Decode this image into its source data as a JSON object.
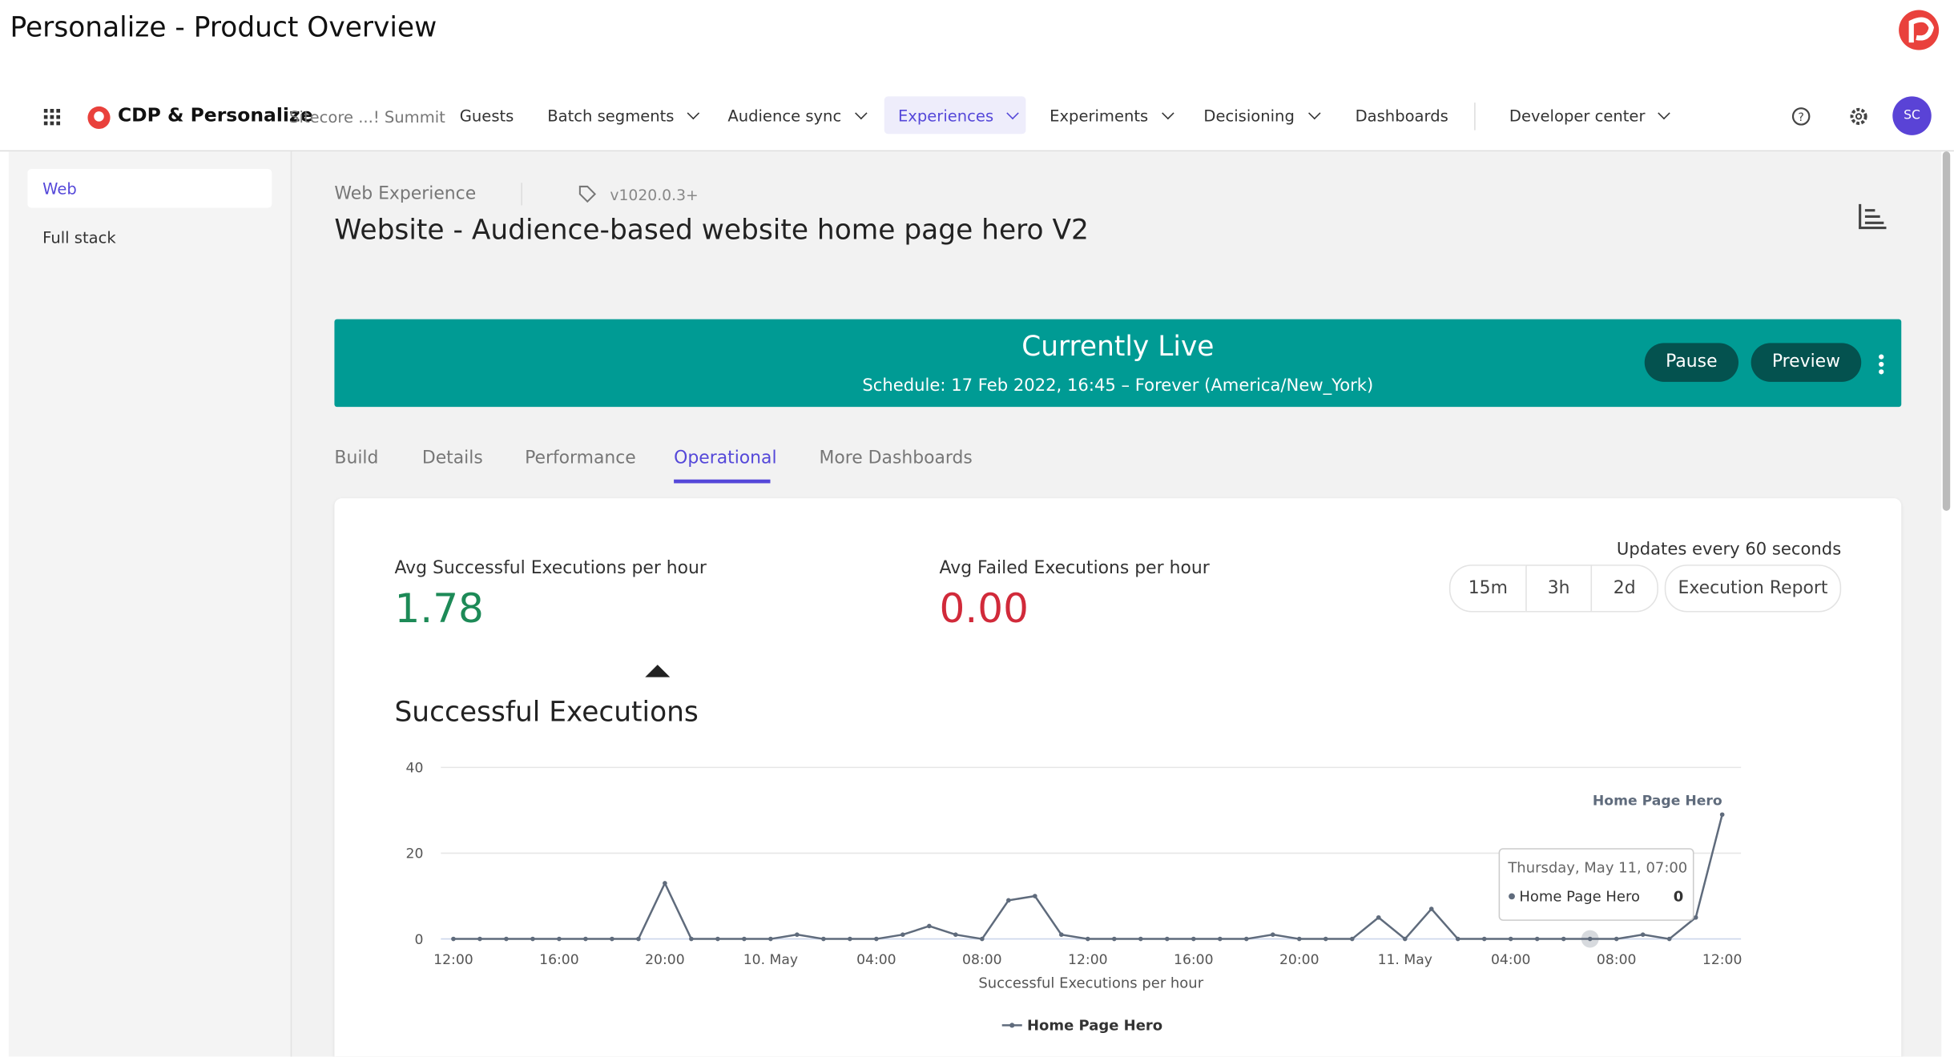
{
  "page_title": "Personalize - Product Overview",
  "nav": {
    "brand": "CDP & Personalize",
    "tenant": "Sitecore ...! Summit",
    "items": [
      "Guests",
      "Batch segments",
      "Audience sync",
      "Experiences",
      "Experiments",
      "Decisioning",
      "Dashboards",
      "Developer center"
    ],
    "avatar": "SC"
  },
  "sidebar": [
    "Web",
    "Full stack"
  ],
  "experience": {
    "type": "Web Experience",
    "version": "v1020.0.3+",
    "name": "Website - Audience-based website home page hero V2"
  },
  "banner": {
    "status": "Currently Live",
    "schedule": "Schedule: 17 Feb 2022, 16:45 – Forever (America/New_York)",
    "buttons": [
      "Pause",
      "Preview"
    ]
  },
  "tabs": [
    "Build",
    "Details",
    "Performance",
    "Operational",
    "More Dashboards"
  ],
  "metrics": [
    {
      "label": "Avg Successful Executions per hour",
      "value": "1.78"
    },
    {
      "label": "Avg Failed Executions per hour",
      "value": "0.00"
    }
  ],
  "update_note": "Updates every 60 seconds",
  "ranges": [
    "15m",
    "3h",
    "2d"
  ],
  "report_button": "Execution Report",
  "chart_data": {
    "type": "line",
    "title": "Successful Executions",
    "x_label": "Successful Executions per hour",
    "categories": [
      "12:00",
      null,
      null,
      null,
      "16:00",
      null,
      null,
      null,
      "20:00",
      null,
      null,
      null,
      "10. May",
      null,
      null,
      null,
      "04:00",
      null,
      null,
      null,
      "08:00",
      null,
      null,
      null,
      "12:00",
      null,
      null,
      null,
      "16:00",
      null,
      null,
      null,
      "20:00",
      null,
      null,
      null,
      "11. May",
      null,
      null,
      null,
      "04:00",
      null,
      null,
      null,
      "08:00",
      null,
      null,
      null,
      "12:00"
    ],
    "series": [
      {
        "name": "Home Page Hero",
        "color": "#5f6b7c",
        "values": [
          0,
          0,
          0,
          0,
          0,
          0,
          0,
          0,
          13,
          0,
          0,
          0,
          0,
          1,
          0,
          0,
          0,
          1,
          3,
          1,
          0,
          9,
          10,
          1,
          0,
          0,
          0,
          0,
          0,
          0,
          0,
          1,
          0,
          0,
          0,
          5,
          0,
          7,
          0,
          0,
          0,
          0,
          0,
          0,
          0,
          1,
          0,
          5,
          29
        ]
      }
    ],
    "ylim": [
      0,
      40
    ],
    "yticks": [
      0,
      20,
      40
    ],
    "grid": true,
    "tooltip": {
      "title": "Thursday, May 11, 07:00",
      "series": "Home Page Hero",
      "value": 0
    }
  }
}
